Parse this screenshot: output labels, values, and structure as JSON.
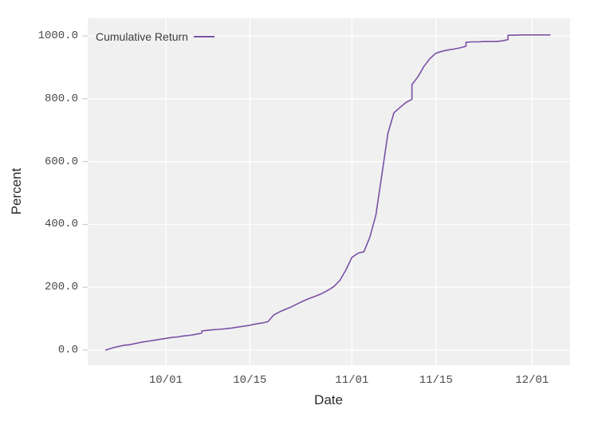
{
  "figure": {
    "background": "#ffffff",
    "plot_background": "#f0f0f0",
    "gridline_color": "#ffffff",
    "tick_mark_color": "#c0c0c0",
    "tick_label_color": "#4a4a4a",
    "axis_label_color": "#2b2b2b",
    "legend_text_color": "#3a3a3a"
  },
  "chart_data": {
    "type": "line",
    "title": "",
    "xlabel": "Date",
    "ylabel": "Percent",
    "legend_label": "Cumulative Return",
    "legend_position": "top_left",
    "line_color": "#7a50a5",
    "grid": "on",
    "x_tick_labels": [
      "10/01",
      "10/15",
      "11/01",
      "11/15",
      "12/01"
    ],
    "y_tick_labels": [
      "0.0",
      "200.0",
      "400.0",
      "600.0",
      "800.0",
      "1000.0"
    ],
    "y_tick_values": [
      0,
      200,
      400,
      600,
      800,
      1000
    ],
    "ylim": [
      -55,
      1055
    ],
    "x_start_date": "09/18",
    "x_end_date": "12/07",
    "series": [
      {
        "name": "Cumulative Return",
        "color": "#7a50a5",
        "points": [
          [
            "09/21",
            0
          ],
          [
            "09/22",
            6
          ],
          [
            "09/23",
            11
          ],
          [
            "09/24",
            15
          ],
          [
            "09/25",
            17
          ],
          [
            "09/26",
            21
          ],
          [
            "09/27",
            25
          ],
          [
            "09/28",
            28
          ],
          [
            "09/29",
            31
          ],
          [
            "09/30",
            34
          ],
          [
            "10/01",
            37
          ],
          [
            "10/02",
            40
          ],
          [
            "10/03",
            42
          ],
          [
            "10/04",
            45
          ],
          [
            "10/05",
            47
          ],
          [
            "10/06",
            50
          ],
          [
            "10/07",
            54
          ],
          [
            "10/07",
            61
          ],
          [
            "10/08",
            63
          ],
          [
            "10/09",
            65
          ],
          [
            "10/10",
            66
          ],
          [
            "10/11",
            68
          ],
          [
            "10/12",
            70
          ],
          [
            "10/13",
            73
          ],
          [
            "10/14",
            76
          ],
          [
            "10/15",
            79
          ],
          [
            "10/16",
            83
          ],
          [
            "10/17",
            86
          ],
          [
            "10/18",
            90
          ],
          [
            "10/19",
            112
          ],
          [
            "10/20",
            122
          ],
          [
            "10/21",
            130
          ],
          [
            "10/22",
            138
          ],
          [
            "10/23",
            148
          ],
          [
            "10/24",
            157
          ],
          [
            "10/25",
            165
          ],
          [
            "10/26",
            172
          ],
          [
            "10/27",
            180
          ],
          [
            "10/28",
            190
          ],
          [
            "10/29",
            202
          ],
          [
            "10/30",
            222
          ],
          [
            "10/31",
            255
          ],
          [
            "11/01",
            295
          ],
          [
            "11/02",
            308
          ],
          [
            "11/03",
            313
          ],
          [
            "11/04",
            360
          ],
          [
            "11/05",
            430
          ],
          [
            "11/06",
            560
          ],
          [
            "11/07",
            690
          ],
          [
            "11/08",
            755
          ],
          [
            "11/09",
            772
          ],
          [
            "11/10",
            788
          ],
          [
            "11/11",
            798
          ],
          [
            "11/11",
            845
          ],
          [
            "11/12",
            870
          ],
          [
            "11/13",
            903
          ],
          [
            "11/14",
            928
          ],
          [
            "11/15",
            945
          ],
          [
            "11/16",
            951
          ],
          [
            "11/17",
            955
          ],
          [
            "11/18",
            958
          ],
          [
            "11/19",
            962
          ],
          [
            "11/20",
            967
          ],
          [
            "11/20",
            980
          ],
          [
            "11/21",
            981
          ],
          [
            "11/22",
            981
          ],
          [
            "11/23",
            982
          ],
          [
            "11/24",
            982
          ],
          [
            "11/25",
            982
          ],
          [
            "11/26",
            984
          ],
          [
            "11/27",
            988
          ],
          [
            "11/27",
            1002
          ],
          [
            "11/28",
            1002
          ],
          [
            "11/29",
            1003
          ],
          [
            "11/30",
            1003
          ],
          [
            "12/01",
            1003
          ],
          [
            "12/02",
            1003
          ],
          [
            "12/03",
            1003
          ],
          [
            "12/04",
            1003
          ]
        ]
      }
    ]
  }
}
